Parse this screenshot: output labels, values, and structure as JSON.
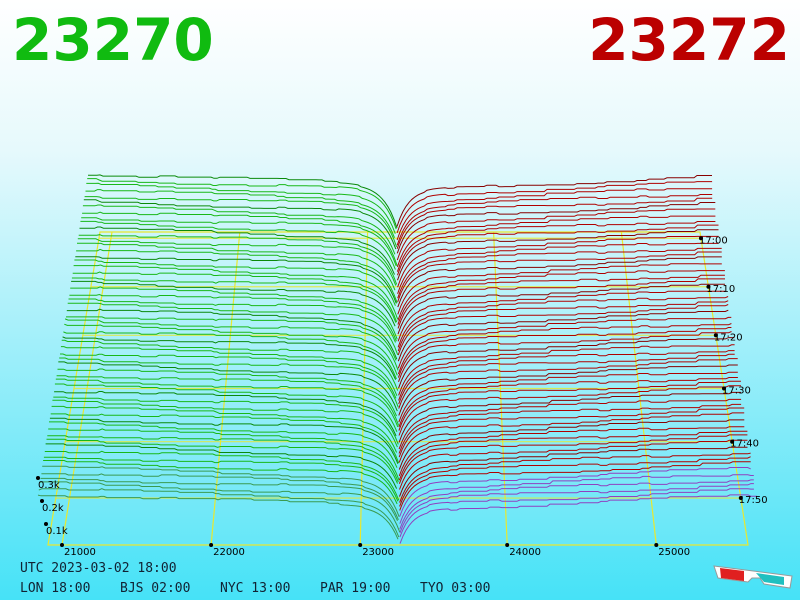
{
  "header": {
    "bid": "23270",
    "ask": "23272"
  },
  "price_axis": [
    "21000",
    "22000",
    "23000",
    "24000",
    "25000"
  ],
  "time_axis": [
    "17:00",
    "17:10",
    "17:20",
    "17:30",
    "17:40",
    "17:50"
  ],
  "depth_axis": [
    "0.3k",
    "0.2k",
    "0.1k"
  ],
  "footer": {
    "utc": "UTC 2023-03-02 18:00",
    "zones": [
      "LON 18:00",
      "BJS 02:00",
      "NYC 13:00",
      "PAR 19:00",
      "TYO 03:00"
    ]
  }
}
